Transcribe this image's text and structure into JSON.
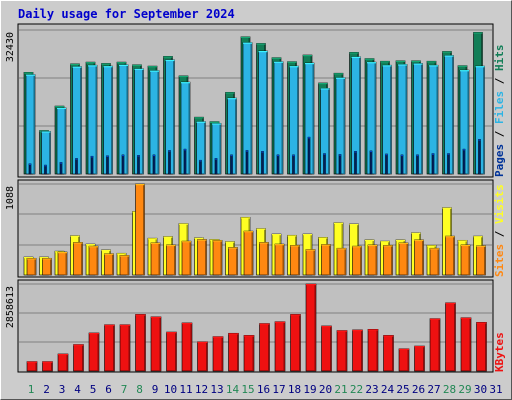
{
  "title": "Daily usage for September 2024",
  "colors": {
    "hits": "#127e57",
    "files": "#2cb4e4",
    "pages": "#003399",
    "visits": "#ffff22",
    "sites": "#ff8811",
    "kbytes": "#ee1111",
    "weekend_label": "#228855",
    "day_label": "#000080"
  },
  "chart_data": [
    {
      "type": "bar",
      "panel": "hits",
      "scale_label": "32430",
      "legend": [
        {
          "key": "pages",
          "text": "Pages"
        },
        {
          "key": "files",
          "text": "Files"
        },
        {
          "key": "hits",
          "text": "Hits"
        }
      ],
      "x": [
        1,
        2,
        3,
        4,
        5,
        6,
        7,
        8,
        9,
        10,
        11,
        12,
        13,
        14,
        15,
        16,
        17,
        18,
        19,
        20,
        21,
        22,
        23,
        24,
        25,
        26,
        27,
        28,
        29,
        30
      ],
      "ylim": [
        0,
        32430
      ],
      "series": [
        {
          "name": "Hits",
          "key": "hits",
          "values": [
            22900,
            9800,
            15300,
            24800,
            25200,
            24900,
            25200,
            24600,
            24300,
            26500,
            22100,
            12800,
            11800,
            18400,
            30900,
            29400,
            26200,
            25300,
            26800,
            20500,
            22700,
            27400,
            26000,
            25400,
            25500,
            25500,
            25400,
            27600,
            24400,
            31900
          ]
        },
        {
          "name": "Files",
          "key": "files",
          "values": [
            22400,
            9600,
            14900,
            24200,
            24500,
            24300,
            24600,
            23700,
            23300,
            25700,
            20700,
            11800,
            11400,
            17100,
            29600,
            27700,
            25300,
            24300,
            25000,
            19300,
            21700,
            26400,
            25200,
            24500,
            24700,
            24900,
            24500,
            26700,
            23400,
            24300
          ]
        },
        {
          "name": "Pages",
          "key": "pages",
          "values": [
            2300,
            2000,
            2600,
            3500,
            4000,
            4100,
            4300,
            4200,
            4300,
            5300,
            5600,
            3100,
            3500,
            4300,
            5300,
            5100,
            4300,
            4300,
            8300,
            4600,
            4400,
            5100,
            5200,
            4500,
            4300,
            4300,
            4600,
            4600,
            5600,
            7800
          ]
        }
      ]
    },
    {
      "type": "bar",
      "panel": "visits",
      "scale_label": "1088",
      "legend": [
        {
          "key": "sites",
          "text": "Sites"
        },
        {
          "key": "visits",
          "text": "Visits"
        }
      ],
      "x": [
        1,
        2,
        3,
        4,
        5,
        6,
        7,
        8,
        9,
        10,
        11,
        12,
        13,
        14,
        15,
        16,
        17,
        18,
        19,
        20,
        21,
        22,
        23,
        24,
        25,
        26,
        27,
        28,
        29,
        30
      ],
      "ylim": [
        0,
        1088
      ],
      "series": [
        {
          "name": "Visits",
          "key": "visits",
          "values": [
            215,
            215,
            285,
            470,
            370,
            300,
            260,
            760,
            440,
            460,
            615,
            445,
            425,
            400,
            690,
            555,
            490,
            475,
            490,
            450,
            625,
            610,
            420,
            405,
            420,
            505,
            355,
            805,
            415,
            465
          ]
        },
        {
          "name": "Sites",
          "key": "sites",
          "values": [
            200,
            200,
            275,
            390,
            345,
            255,
            235,
            1088,
            385,
            360,
            405,
            425,
            415,
            330,
            525,
            390,
            370,
            355,
            305,
            365,
            320,
            345,
            360,
            355,
            385,
            420,
            320,
            465,
            360,
            350
          ]
        }
      ]
    },
    {
      "type": "bar",
      "panel": "kbytes",
      "scale_label": "2858613",
      "legend": [
        {
          "key": "kbytes",
          "text": "KBytes"
        }
      ],
      "x": [
        1,
        2,
        3,
        4,
        5,
        6,
        7,
        8,
        9,
        10,
        11,
        12,
        13,
        14,
        15,
        16,
        17,
        18,
        19,
        20,
        21,
        22,
        23,
        24,
        25,
        26,
        27,
        28,
        29,
        30
      ],
      "ylim": [
        0,
        2858613
      ],
      "series": [
        {
          "name": "KBytes",
          "key": "kbytes",
          "values": [
            310000,
            310000,
            560000,
            870000,
            1250000,
            1520000,
            1520000,
            1860000,
            1780000,
            1280000,
            1580000,
            960000,
            1130000,
            1240000,
            1170000,
            1560000,
            1620000,
            1860000,
            2858613,
            1480000,
            1330000,
            1350000,
            1370000,
            1170000,
            730000,
            820000,
            1720000,
            2240000,
            1750000,
            1600000
          ]
        }
      ]
    }
  ],
  "day_labels": [
    "1",
    "2",
    "3",
    "4",
    "5",
    "6",
    "7",
    "8",
    "9",
    "10",
    "11",
    "12",
    "13",
    "14",
    "15",
    "16",
    "17",
    "18",
    "19",
    "20",
    "21",
    "22",
    "23",
    "24",
    "25",
    "26",
    "27",
    "28",
    "29",
    "30",
    "31"
  ],
  "weekend_days": [
    1,
    7,
    8,
    14,
    15,
    21,
    22,
    28,
    29
  ]
}
